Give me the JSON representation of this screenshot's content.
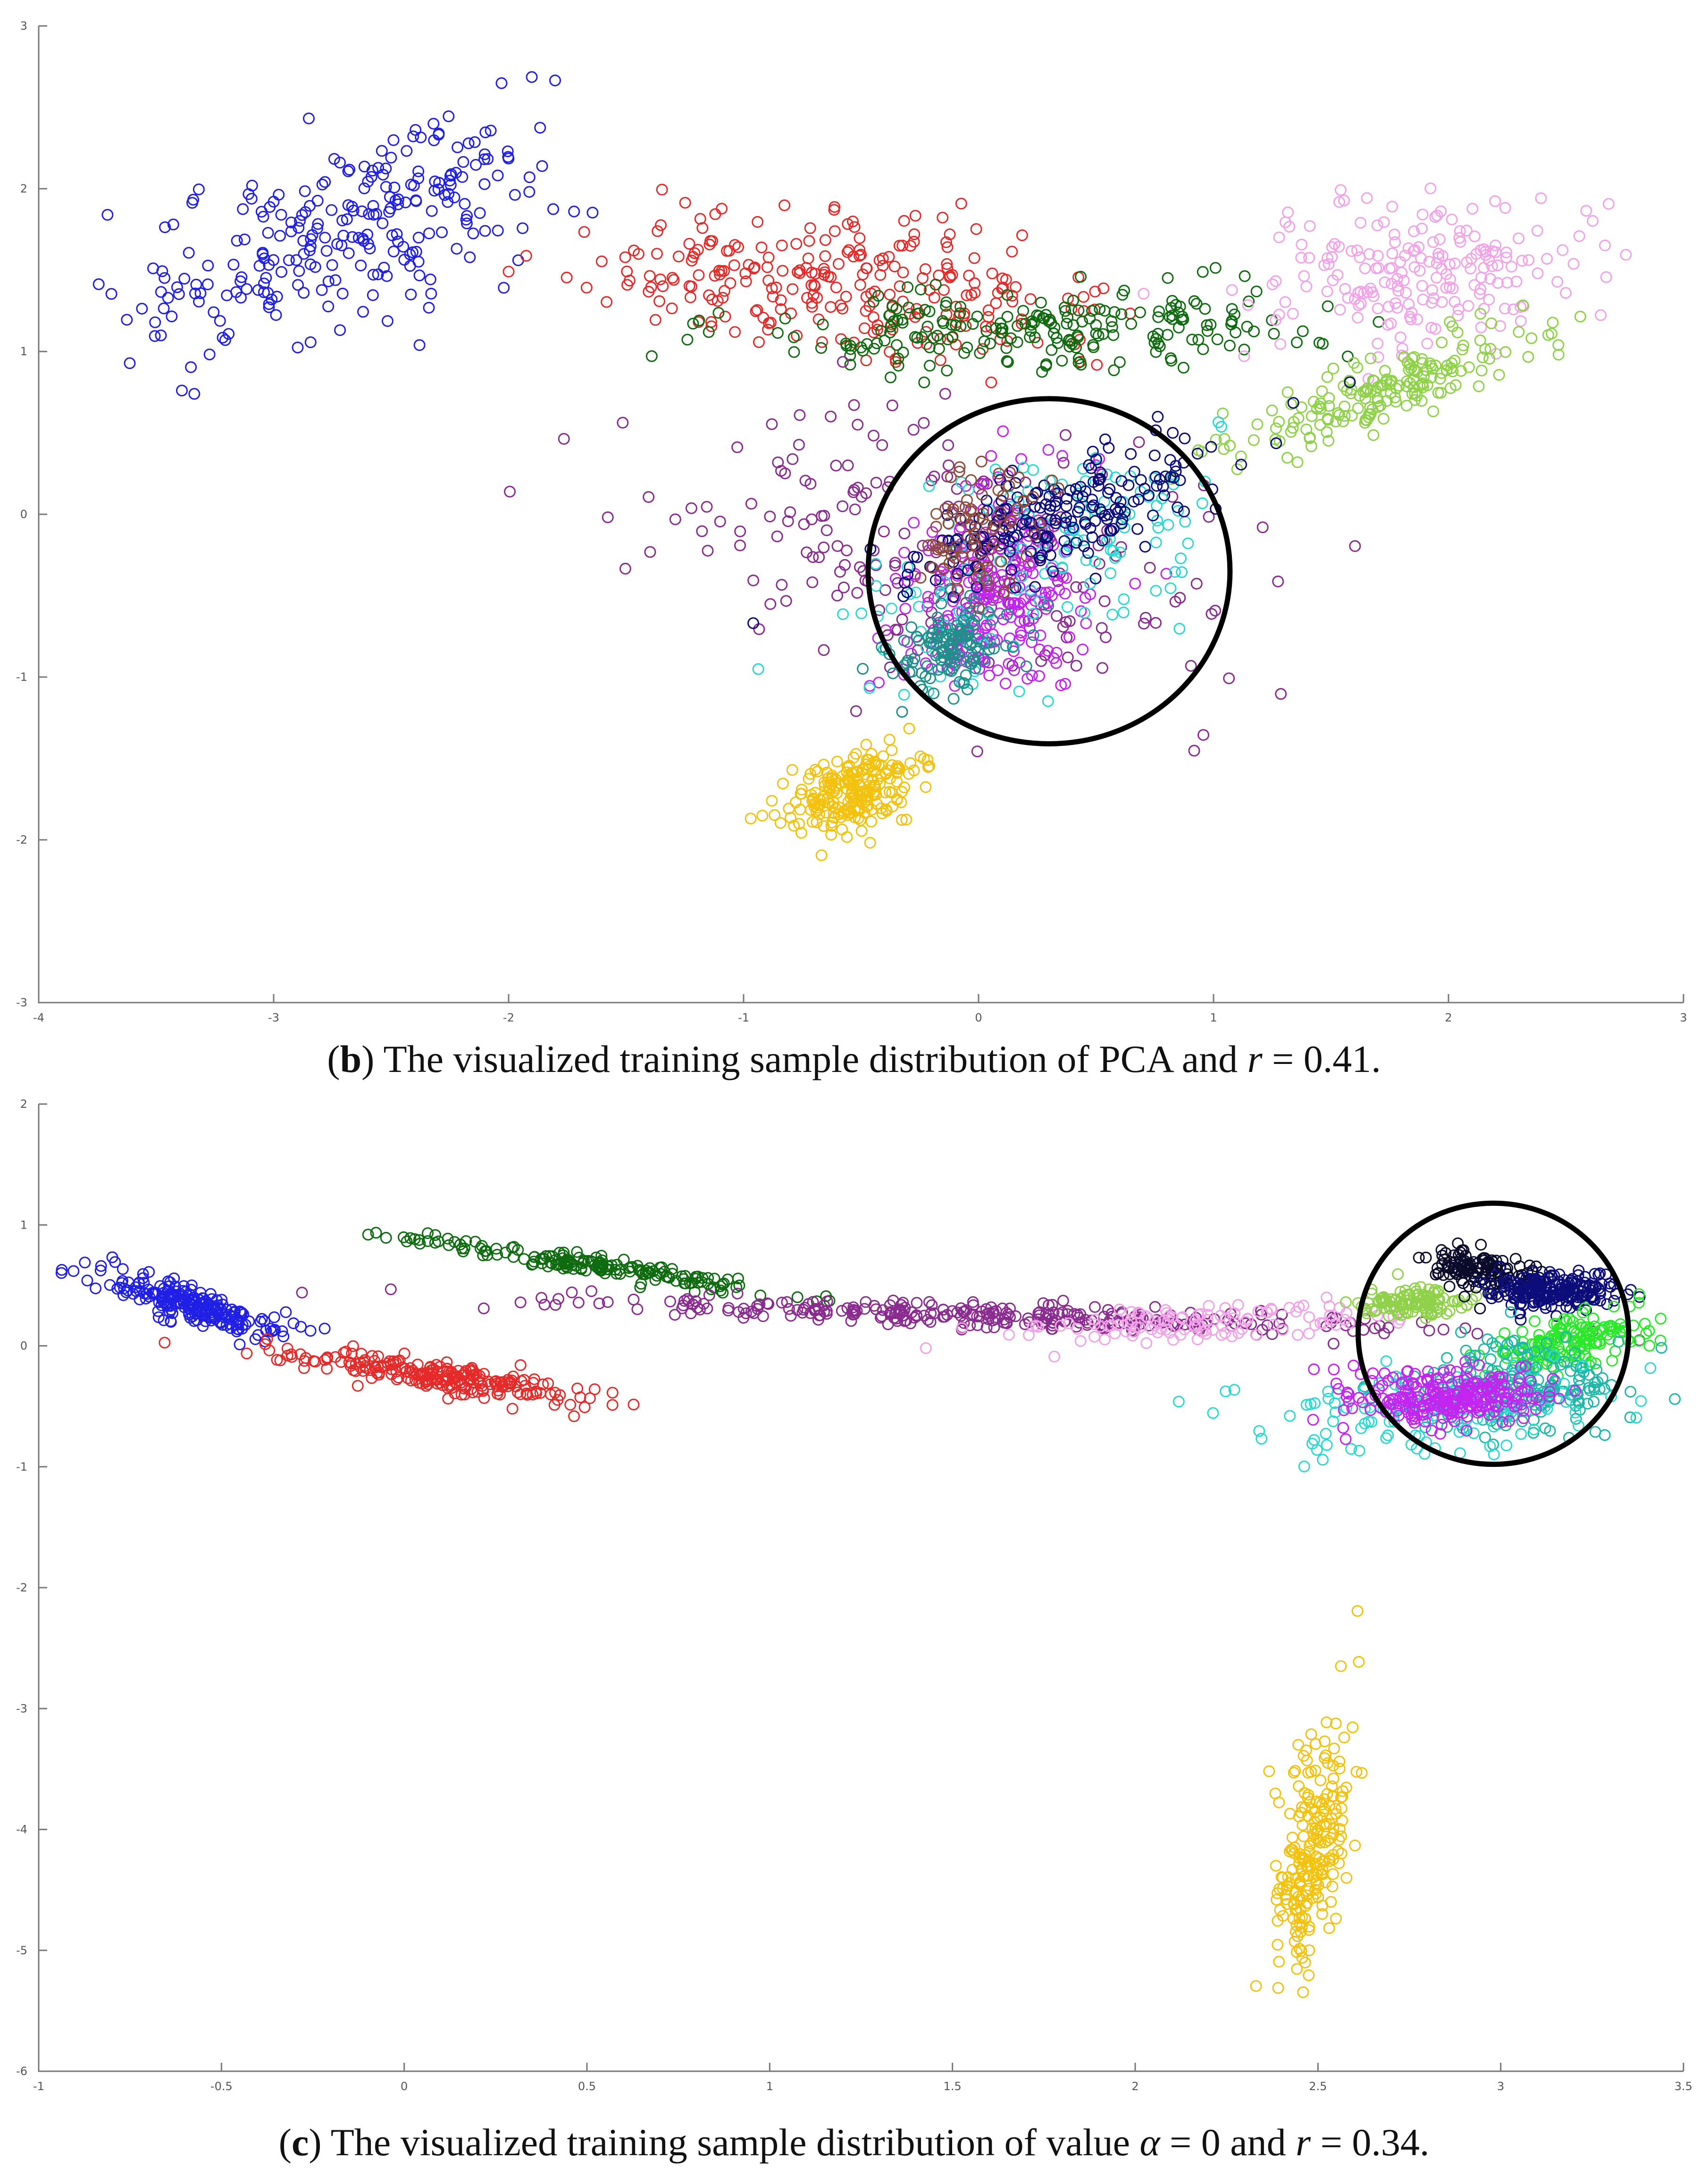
{
  "chart_data": [
    {
      "type": "scatter",
      "panel": "b",
      "xlim": [
        -4,
        3
      ],
      "ylim": [
        -3,
        3
      ],
      "xticks": [
        "-4",
        "-3",
        "-2",
        "-1",
        "0",
        "1",
        "2",
        "3"
      ],
      "yticks": [
        "-3",
        "-2",
        "-1",
        "0",
        "1",
        "2",
        "3"
      ],
      "caption": {
        "open": "(",
        "letter": "b",
        "before_var": ") The visualized training sample distribution of PCA and ",
        "var": "r",
        "after_var": " = 0.41."
      },
      "highlight_circle": {
        "cx": 0.3,
        "cy": -0.35,
        "rx": 0.77,
        "ry": 1.06
      },
      "series": [
        {
          "name": "blue",
          "color": "#1f1fe6",
          "n": 260,
          "cx": -2.7,
          "cy": 1.75,
          "sx": 0.45,
          "sy": 0.28,
          "slope": 0.45
        },
        {
          "name": "red",
          "color": "#e52a2a",
          "n": 260,
          "cx": -0.6,
          "cy": 1.4,
          "sx": 0.55,
          "sy": 0.2,
          "slope": -0.1
        },
        {
          "name": "dark green",
          "color": "#0f6b0f",
          "n": 220,
          "cx": 0.3,
          "cy": 1.15,
          "sx": 0.6,
          "sy": 0.12,
          "slope": 0.05
        },
        {
          "name": "pink",
          "color": "#f2a3e8",
          "n": 200,
          "cx": 1.9,
          "cy": 1.5,
          "sx": 0.35,
          "sy": 0.22,
          "slope": 0.2
        },
        {
          "name": "yellow-green",
          "color": "#8fd24a",
          "n": 180,
          "cx": 1.7,
          "cy": 0.75,
          "sx": 0.35,
          "sy": 0.1,
          "slope": 0.55
        },
        {
          "name": "purple",
          "color": "#8a2b8f",
          "n": 220,
          "cx": -0.2,
          "cy": -0.25,
          "sx": 0.6,
          "sy": 0.4,
          "slope": -0.3
        },
        {
          "name": "magenta",
          "color": "#c424f0",
          "n": 260,
          "cx": 0.05,
          "cy": -0.45,
          "sx": 0.2,
          "sy": 0.3,
          "slope": 0.4
        },
        {
          "name": "cyan",
          "color": "#2bd9d0",
          "n": 140,
          "cx": 0.3,
          "cy": -0.3,
          "sx": 0.4,
          "sy": 0.35,
          "slope": 0.6
        },
        {
          "name": "teal",
          "color": "#1f8f8a",
          "n": 120,
          "cx": -0.1,
          "cy": -0.8,
          "sx": 0.15,
          "sy": 0.15,
          "slope": 0.3
        },
        {
          "name": "navy",
          "color": "#0c0c7a",
          "n": 200,
          "cx": 0.35,
          "cy": 0.0,
          "sx": 0.35,
          "sy": 0.15,
          "slope": 0.5
        },
        {
          "name": "brown",
          "color": "#8f4a3a",
          "n": 80,
          "cx": 0.0,
          "cy": -0.1,
          "sx": 0.12,
          "sy": 0.2,
          "slope": 0.4
        },
        {
          "name": "gold",
          "color": "#f2c20f",
          "n": 220,
          "cx": -0.55,
          "cy": -1.7,
          "sx": 0.15,
          "sy": 0.12,
          "slope": 0.4
        }
      ]
    },
    {
      "type": "scatter",
      "panel": "c",
      "xlim": [
        -1,
        3.5
      ],
      "ylim": [
        -6,
        2
      ],
      "xticks": [
        "-1",
        "-0.5",
        "0",
        "0.5",
        "1",
        "1.5",
        "2",
        "2.5",
        "3",
        "3.5"
      ],
      "yticks": [
        "-6",
        "-5",
        "-4",
        "-3",
        "-2",
        "-1",
        "0",
        "1",
        "2"
      ],
      "caption": {
        "open": "(",
        "letter": "c",
        "before_var": ") The visualized training sample distribution of value ",
        "var": "α",
        "mid": " = 0  and ",
        "var2": "r",
        "after_var": " = 0.34."
      },
      "highlight_circle": {
        "cx": 2.98,
        "cy": 0.1,
        "rx": 0.37,
        "ry": 1.08
      },
      "series": [
        {
          "name": "blue",
          "color": "#1f1fe6",
          "n": 220,
          "cx": -0.57,
          "cy": 0.33,
          "sx": 0.12,
          "sy": 0.08,
          "slope": -0.9
        },
        {
          "name": "red",
          "color": "#e52a2a",
          "n": 230,
          "cx": 0.1,
          "cy": -0.25,
          "sx": 0.2,
          "sy": 0.06,
          "slope": -0.45
        },
        {
          "name": "dark green",
          "color": "#0f6b0f",
          "n": 180,
          "cx": 0.55,
          "cy": 0.65,
          "sx": 0.28,
          "sy": 0.04,
          "slope": -0.45
        },
        {
          "name": "purple",
          "color": "#8a2b8f",
          "n": 300,
          "cx": 1.6,
          "cy": 0.25,
          "sx": 0.6,
          "sy": 0.05,
          "slope": -0.1
        },
        {
          "name": "pink",
          "color": "#f2a3e8",
          "n": 120,
          "cx": 2.2,
          "cy": 0.18,
          "sx": 0.25,
          "sy": 0.08,
          "slope": 0.1
        },
        {
          "name": "yellow-green",
          "color": "#8fd24a",
          "n": 120,
          "cx": 2.75,
          "cy": 0.35,
          "sx": 0.07,
          "sy": 0.06,
          "slope": 0.0
        },
        {
          "name": "black",
          "color": "#0a0a2a",
          "n": 140,
          "cx": 2.95,
          "cy": 0.62,
          "sx": 0.08,
          "sy": 0.08,
          "slope": -0.5
        },
        {
          "name": "navy",
          "color": "#0c0c7a",
          "n": 200,
          "cx": 3.15,
          "cy": 0.45,
          "sx": 0.09,
          "sy": 0.07,
          "slope": 0.0
        },
        {
          "name": "bright green",
          "color": "#2be82b",
          "n": 160,
          "cx": 3.2,
          "cy": 0.05,
          "sx": 0.1,
          "sy": 0.12,
          "slope": 0.5
        },
        {
          "name": "teal",
          "color": "#1fb7a7",
          "n": 220,
          "cx": 3.05,
          "cy": -0.35,
          "sx": 0.15,
          "sy": 0.2,
          "slope": 0.4
        },
        {
          "name": "cyan",
          "color": "#2bd9d0",
          "n": 120,
          "cx": 2.8,
          "cy": -0.55,
          "sx": 0.25,
          "sy": 0.2,
          "slope": 0.1
        },
        {
          "name": "magenta",
          "color": "#c424f0",
          "n": 260,
          "cx": 2.85,
          "cy": -0.42,
          "sx": 0.13,
          "sy": 0.12,
          "slope": 0.0
        },
        {
          "name": "gold",
          "color": "#f2c20f",
          "n": 220,
          "cx": 2.48,
          "cy": -4.2,
          "sx": 0.05,
          "sy": 0.45,
          "slope": 6.0
        }
      ]
    }
  ]
}
